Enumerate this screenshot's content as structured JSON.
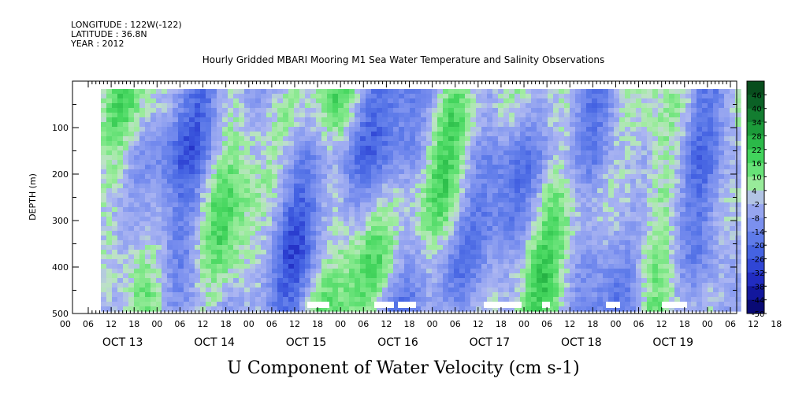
{
  "header": {
    "longitude": "LONGITUDE : 122W(-122)",
    "latitude": "LATITUDE : 36.8N",
    "year": "YEAR : 2012"
  },
  "chart_data": {
    "type": "heatmap",
    "title": "Hourly Gridded MBARI Mooring M1 Sea Water Temperature and Salinity Observations",
    "bottom_title": "U Component of Water Velocity (cm s-1)",
    "ylabel": "DEPTH (m)",
    "xlabel": "",
    "y_axis": {
      "ticks": [
        100,
        200,
        300,
        400,
        500
      ],
      "range": [
        0,
        500
      ],
      "inverted": true
    },
    "x_axis": {
      "range_hours": [
        0,
        168
      ],
      "hour_labels": [
        "00",
        "06",
        "12",
        "18",
        "00",
        "06",
        "12",
        "18",
        "00",
        "06",
        "12",
        "18",
        "00",
        "06",
        "12",
        "18",
        "00",
        "06",
        "12",
        "18",
        "00",
        "06",
        "12",
        "18",
        "00",
        "06",
        "12",
        "18",
        "00",
        "06",
        "12",
        "18"
      ],
      "day_labels": [
        "OCT 13",
        "OCT 14",
        "OCT 15",
        "OCT 16",
        "OCT 17",
        "OCT 18",
        "OCT 19"
      ]
    },
    "colorbar": {
      "labels": [
        "46",
        "40",
        "34",
        "28",
        "22",
        "16",
        "10",
        "4",
        "-2",
        "-8",
        "-14",
        "-20",
        "-26",
        "-32",
        "-38",
        "-44",
        "-50"
      ],
      "range": [
        -50,
        52
      ]
    }
  }
}
